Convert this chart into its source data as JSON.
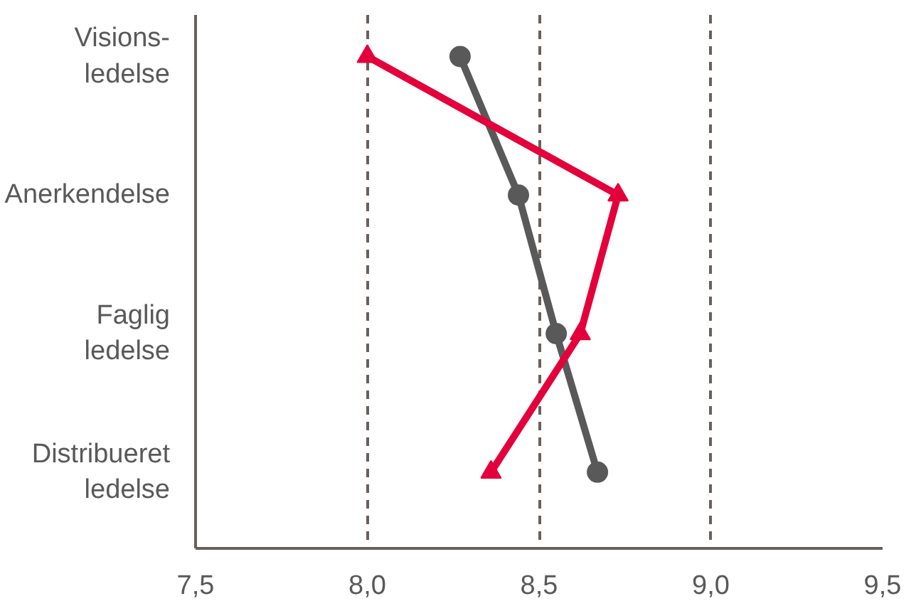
{
  "chart_data": {
    "type": "line",
    "orientation": "horizontal",
    "categories": [
      "Visions-\nledelse",
      "Anerkendelse",
      "Faglig\nledelse",
      "Distribueret\nledelse"
    ],
    "series": [
      {
        "color": "#595959",
        "marker": "circle",
        "values": [
          8.27,
          8.44,
          8.55,
          8.67
        ]
      },
      {
        "color": "#e4003a",
        "marker": "triangle",
        "values": [
          8.0,
          8.73,
          8.62,
          8.36
        ]
      }
    ],
    "xlim": [
      7.5,
      9.5
    ],
    "xticks": [
      {
        "value": 7.5,
        "label": "7,5"
      },
      {
        "value": 8.0,
        "label": "8,0"
      },
      {
        "value": 8.5,
        "label": "8,5"
      },
      {
        "value": 9.0,
        "label": "9,0"
      },
      {
        "value": 9.5,
        "label": "9,5"
      }
    ],
    "grid": "x",
    "line_style": "solid"
  }
}
